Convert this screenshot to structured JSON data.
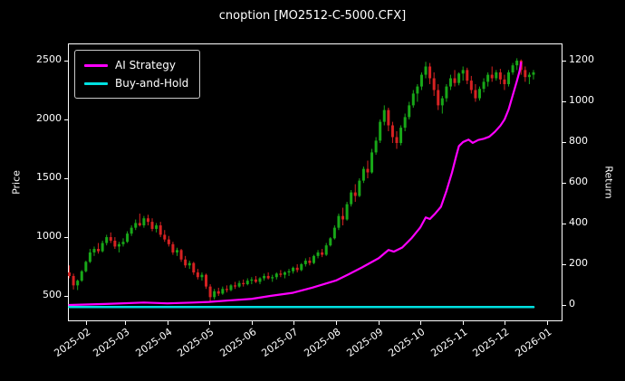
{
  "chart_data": {
    "type": "candlestick",
    "title": "cnoption [MO2512-C-5000.CFX]",
    "ylabel_left": "Price",
    "ylabel_right": "Return",
    "legend_position": "upper-left",
    "grid": false,
    "background": "#000000",
    "x_domain": [
      "2025-01-19",
      "2026-01-12"
    ],
    "price_range": [
      285,
      2646
    ],
    "return_range": [
      -80,
      1284
    ],
    "price_ticks": [
      500,
      1000,
      1500,
      2000,
      2500
    ],
    "return_ticks": [
      0,
      200,
      400,
      600,
      800,
      1000,
      1200
    ],
    "month_ticks": [
      {
        "date": "2025-02-01",
        "label": "2025-02"
      },
      {
        "date": "2025-03-01",
        "label": "2025-03"
      },
      {
        "date": "2025-04-01",
        "label": "2025-04"
      },
      {
        "date": "2025-05-01",
        "label": "2025-05"
      },
      {
        "date": "2025-06-01",
        "label": "2025-06"
      },
      {
        "date": "2025-07-01",
        "label": "2025-07"
      },
      {
        "date": "2025-08-01",
        "label": "2025-08"
      },
      {
        "date": "2025-09-01",
        "label": "2025-09"
      },
      {
        "date": "2025-10-01",
        "label": "2025-10"
      },
      {
        "date": "2025-11-01",
        "label": "2025-11"
      },
      {
        "date": "2025-12-01",
        "label": "2025-12"
      },
      {
        "date": "2026-01-01",
        "label": "2026-01"
      }
    ],
    "colors": {
      "candle_up": "#18a718",
      "candle_down": "#d62222",
      "axis": "#ffffff",
      "text": "#ffffff"
    },
    "candles": [
      [
        "2025-01-20",
        700,
        760,
        650,
        670
      ],
      [
        "2025-01-23",
        670,
        690,
        555,
        590
      ],
      [
        "2025-01-26",
        590,
        640,
        550,
        630
      ],
      [
        "2025-01-29",
        630,
        720,
        620,
        710
      ],
      [
        "2025-02-01",
        710,
        800,
        700,
        790
      ],
      [
        "2025-02-04",
        790,
        900,
        780,
        870
      ],
      [
        "2025-02-07",
        870,
        920,
        840,
        900
      ],
      [
        "2025-02-10",
        900,
        950,
        860,
        880
      ],
      [
        "2025-02-13",
        880,
        970,
        870,
        950
      ],
      [
        "2025-02-16",
        950,
        1020,
        930,
        1000
      ],
      [
        "2025-02-19",
        1000,
        1040,
        950,
        970
      ],
      [
        "2025-02-22",
        970,
        1000,
        900,
        920
      ],
      [
        "2025-02-25",
        920,
        960,
        870,
        940
      ],
      [
        "2025-02-28",
        940,
        990,
        920,
        960
      ],
      [
        "2025-03-03",
        960,
        1050,
        950,
        1030
      ],
      [
        "2025-03-06",
        1030,
        1100,
        1010,
        1080
      ],
      [
        "2025-03-09",
        1080,
        1150,
        1060,
        1120
      ],
      [
        "2025-03-12",
        1120,
        1200,
        1090,
        1100
      ],
      [
        "2025-03-15",
        1100,
        1180,
        1080,
        1160
      ],
      [
        "2025-03-18",
        1160,
        1190,
        1100,
        1130
      ],
      [
        "2025-03-21",
        1130,
        1160,
        1050,
        1070
      ],
      [
        "2025-03-24",
        1070,
        1120,
        1040,
        1100
      ],
      [
        "2025-03-27",
        1100,
        1130,
        1000,
        1020
      ],
      [
        "2025-03-30",
        1020,
        1060,
        960,
        980
      ],
      [
        "2025-04-02",
        980,
        1010,
        920,
        940
      ],
      [
        "2025-04-05",
        940,
        960,
        850,
        870
      ],
      [
        "2025-04-08",
        870,
        910,
        840,
        890
      ],
      [
        "2025-04-11",
        890,
        900,
        790,
        810
      ],
      [
        "2025-04-14",
        810,
        840,
        740,
        760
      ],
      [
        "2025-04-17",
        760,
        800,
        730,
        780
      ],
      [
        "2025-04-20",
        780,
        790,
        680,
        700
      ],
      [
        "2025-04-23",
        700,
        730,
        640,
        660
      ],
      [
        "2025-04-26",
        660,
        700,
        630,
        680
      ],
      [
        "2025-04-29",
        680,
        690,
        560,
        580
      ],
      [
        "2025-05-02",
        580,
        600,
        450,
        490
      ],
      [
        "2025-05-05",
        490,
        560,
        470,
        540
      ],
      [
        "2025-05-08",
        540,
        570,
        500,
        520
      ],
      [
        "2025-05-11",
        520,
        580,
        510,
        560
      ],
      [
        "2025-05-14",
        560,
        590,
        530,
        550
      ],
      [
        "2025-05-17",
        550,
        600,
        540,
        590
      ],
      [
        "2025-05-20",
        590,
        620,
        560,
        580
      ],
      [
        "2025-05-23",
        580,
        630,
        570,
        610
      ],
      [
        "2025-05-26",
        610,
        640,
        580,
        600
      ],
      [
        "2025-05-29",
        600,
        650,
        590,
        630
      ],
      [
        "2025-06-01",
        630,
        660,
        600,
        640
      ],
      [
        "2025-06-04",
        640,
        670,
        610,
        620
      ],
      [
        "2025-06-07",
        620,
        660,
        600,
        650
      ],
      [
        "2025-06-10",
        650,
        690,
        630,
        670
      ],
      [
        "2025-06-13",
        670,
        700,
        640,
        650
      ],
      [
        "2025-06-16",
        650,
        680,
        620,
        660
      ],
      [
        "2025-06-19",
        660,
        700,
        640,
        690
      ],
      [
        "2025-06-22",
        690,
        720,
        660,
        680
      ],
      [
        "2025-06-25",
        680,
        710,
        650,
        700
      ],
      [
        "2025-06-28",
        700,
        730,
        670,
        710
      ],
      [
        "2025-07-01",
        710,
        750,
        690,
        740
      ],
      [
        "2025-07-04",
        740,
        770,
        700,
        720
      ],
      [
        "2025-07-07",
        720,
        780,
        710,
        770
      ],
      [
        "2025-07-10",
        770,
        820,
        750,
        800
      ],
      [
        "2025-07-13",
        800,
        830,
        760,
        780
      ],
      [
        "2025-07-16",
        780,
        850,
        770,
        840
      ],
      [
        "2025-07-19",
        840,
        890,
        820,
        870
      ],
      [
        "2025-07-22",
        870,
        900,
        830,
        850
      ],
      [
        "2025-07-25",
        850,
        950,
        840,
        930
      ],
      [
        "2025-07-28",
        930,
        1000,
        920,
        990
      ],
      [
        "2025-07-31",
        990,
        1100,
        980,
        1080
      ],
      [
        "2025-08-03",
        1080,
        1200,
        1060,
        1180
      ],
      [
        "2025-08-06",
        1180,
        1250,
        1100,
        1150
      ],
      [
        "2025-08-09",
        1150,
        1300,
        1140,
        1280
      ],
      [
        "2025-08-12",
        1280,
        1400,
        1260,
        1380
      ],
      [
        "2025-08-15",
        1380,
        1450,
        1300,
        1350
      ],
      [
        "2025-08-18",
        1350,
        1500,
        1340,
        1480
      ],
      [
        "2025-08-21",
        1480,
        1600,
        1460,
        1580
      ],
      [
        "2025-08-24",
        1580,
        1650,
        1500,
        1550
      ],
      [
        "2025-08-27",
        1550,
        1750,
        1540,
        1720
      ],
      [
        "2025-08-30",
        1720,
        1850,
        1700,
        1820
      ],
      [
        "2025-09-02",
        1820,
        2000,
        1800,
        1980
      ],
      [
        "2025-09-05",
        1980,
        2120,
        1950,
        2080
      ],
      [
        "2025-09-08",
        2080,
        2100,
        1900,
        1950
      ],
      [
        "2025-09-11",
        1950,
        1980,
        1800,
        1850
      ],
      [
        "2025-09-14",
        1850,
        1900,
        1750,
        1800
      ],
      [
        "2025-09-17",
        1800,
        1950,
        1780,
        1930
      ],
      [
        "2025-09-20",
        1930,
        2050,
        1900,
        2020
      ],
      [
        "2025-09-23",
        2020,
        2150,
        2000,
        2120
      ],
      [
        "2025-09-26",
        2120,
        2250,
        2100,
        2220
      ],
      [
        "2025-09-29",
        2220,
        2300,
        2150,
        2280
      ],
      [
        "2025-10-02",
        2280,
        2400,
        2250,
        2380
      ],
      [
        "2025-10-05",
        2380,
        2490,
        2350,
        2450
      ],
      [
        "2025-10-08",
        2450,
        2480,
        2300,
        2350
      ],
      [
        "2025-10-11",
        2350,
        2400,
        2200,
        2250
      ],
      [
        "2025-10-14",
        2250,
        2300,
        2080,
        2120
      ],
      [
        "2025-10-17",
        2120,
        2200,
        2050,
        2180
      ],
      [
        "2025-10-20",
        2180,
        2300,
        2150,
        2280
      ],
      [
        "2025-10-23",
        2280,
        2380,
        2250,
        2350
      ],
      [
        "2025-10-26",
        2350,
        2420,
        2280,
        2310
      ],
      [
        "2025-10-29",
        2310,
        2400,
        2290,
        2390
      ],
      [
        "2025-11-01",
        2390,
        2450,
        2330,
        2420
      ],
      [
        "2025-11-04",
        2420,
        2440,
        2300,
        2330
      ],
      [
        "2025-11-07",
        2330,
        2370,
        2220,
        2250
      ],
      [
        "2025-11-10",
        2250,
        2300,
        2150,
        2180
      ],
      [
        "2025-11-13",
        2180,
        2280,
        2160,
        2260
      ],
      [
        "2025-11-16",
        2260,
        2350,
        2230,
        2320
      ],
      [
        "2025-11-19",
        2320,
        2400,
        2280,
        2380
      ],
      [
        "2025-11-22",
        2380,
        2450,
        2320,
        2350
      ],
      [
        "2025-11-25",
        2350,
        2420,
        2330,
        2400
      ],
      [
        "2025-11-28",
        2400,
        2430,
        2300,
        2340
      ],
      [
        "2025-12-01",
        2340,
        2380,
        2250,
        2300
      ],
      [
        "2025-12-04",
        2300,
        2420,
        2280,
        2400
      ],
      [
        "2025-12-07",
        2400,
        2480,
        2380,
        2460
      ],
      [
        "2025-12-10",
        2460,
        2520,
        2420,
        2500
      ],
      [
        "2025-12-13",
        2500,
        2510,
        2380,
        2420
      ],
      [
        "2025-12-16",
        2420,
        2450,
        2320,
        2360
      ],
      [
        "2025-12-19",
        2360,
        2400,
        2300,
        2380
      ],
      [
        "2025-12-22",
        2380,
        2420,
        2340,
        2400
      ]
    ],
    "series": [
      {
        "name": "AI Strategy",
        "axis": "return",
        "color": "#ff00ff",
        "width": 2.2,
        "points": [
          [
            "2025-01-20",
            0
          ],
          [
            "2025-02-15",
            5
          ],
          [
            "2025-03-15",
            12
          ],
          [
            "2025-04-01",
            8
          ],
          [
            "2025-04-20",
            12
          ],
          [
            "2025-05-01",
            15
          ],
          [
            "2025-05-15",
            22
          ],
          [
            "2025-06-01",
            30
          ],
          [
            "2025-06-15",
            45
          ],
          [
            "2025-07-01",
            60
          ],
          [
            "2025-07-15",
            85
          ],
          [
            "2025-08-01",
            120
          ],
          [
            "2025-08-10",
            150
          ],
          [
            "2025-08-20",
            185
          ],
          [
            "2025-09-01",
            230
          ],
          [
            "2025-09-08",
            270
          ],
          [
            "2025-09-12",
            262
          ],
          [
            "2025-09-18",
            282
          ],
          [
            "2025-09-25",
            330
          ],
          [
            "2025-10-01",
            380
          ],
          [
            "2025-10-05",
            430
          ],
          [
            "2025-10-08",
            422
          ],
          [
            "2025-10-12",
            450
          ],
          [
            "2025-10-16",
            482
          ],
          [
            "2025-10-20",
            560
          ],
          [
            "2025-10-24",
            650
          ],
          [
            "2025-10-27",
            730
          ],
          [
            "2025-10-29",
            780
          ],
          [
            "2025-11-01",
            800
          ],
          [
            "2025-11-05",
            812
          ],
          [
            "2025-11-08",
            796
          ],
          [
            "2025-11-12",
            810
          ],
          [
            "2025-11-16",
            816
          ],
          [
            "2025-11-20",
            826
          ],
          [
            "2025-11-24",
            850
          ],
          [
            "2025-11-28",
            880
          ],
          [
            "2025-12-01",
            910
          ],
          [
            "2025-12-04",
            960
          ],
          [
            "2025-12-07",
            1030
          ],
          [
            "2025-12-10",
            1100
          ],
          [
            "2025-12-12",
            1150
          ],
          [
            "2025-12-13",
            1190
          ]
        ]
      },
      {
        "name": "Buy-and-Hold",
        "axis": "return",
        "color": "#00e1e1",
        "width": 2.6,
        "points": [
          [
            "2025-01-20",
            -10
          ],
          [
            "2025-12-22",
            -10
          ]
        ]
      }
    ]
  }
}
